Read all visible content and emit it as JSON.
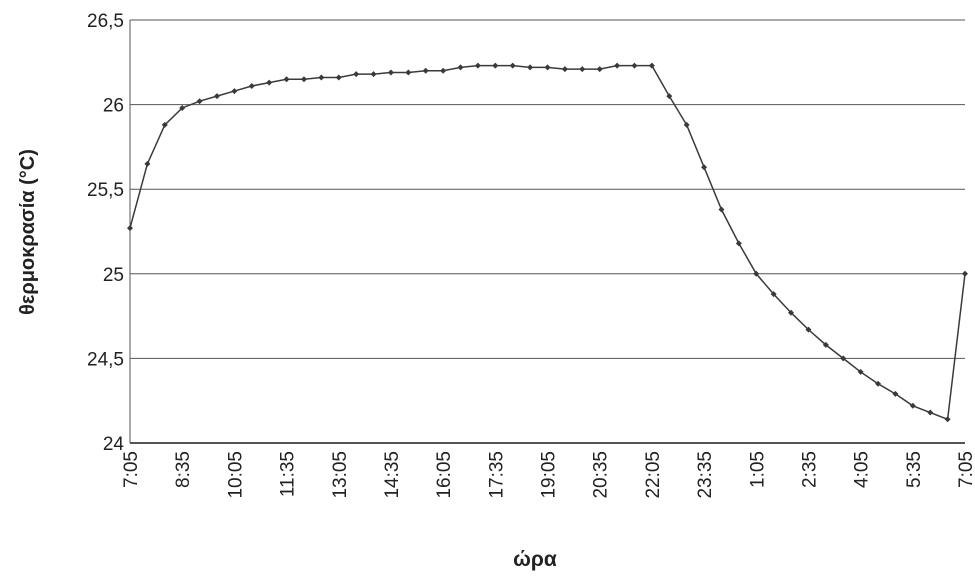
{
  "chart_data": {
    "type": "line",
    "x_label": "ώρα",
    "y_label": "θερμοκρασία (°C)",
    "categories": [
      "7:05",
      null,
      null,
      "8:35",
      null,
      null,
      "10:05",
      null,
      null,
      "11:35",
      null,
      null,
      "13:05",
      null,
      null,
      "14:35",
      null,
      null,
      "16:05",
      null,
      null,
      "17:35",
      null,
      null,
      "19:05",
      null,
      null,
      "20:35",
      null,
      null,
      "22:05",
      null,
      null,
      "23:35",
      null,
      null,
      "1:05",
      null,
      null,
      "2:35",
      null,
      null,
      "4:05",
      null,
      null,
      "5:35",
      null,
      null,
      "7:05"
    ],
    "values": [
      25.27,
      25.65,
      25.88,
      25.98,
      26.02,
      26.05,
      26.08,
      26.11,
      26.13,
      26.15,
      26.15,
      26.16,
      26.16,
      26.18,
      26.18,
      26.19,
      26.19,
      26.2,
      26.2,
      26.22,
      26.23,
      26.23,
      26.23,
      26.22,
      26.22,
      26.21,
      26.21,
      26.21,
      26.23,
      26.23,
      26.23,
      26.05,
      25.88,
      25.63,
      25.38,
      25.18,
      25.0,
      24.88,
      24.77,
      24.67,
      24.58,
      24.5,
      24.42,
      24.35,
      24.29,
      24.22,
      24.18,
      24.14,
      25.0
    ],
    "color": "#3a3a3a",
    "ylim": [
      24,
      26.5
    ],
    "yticks": [
      24,
      {
        "value": 24.5,
        "label": "24,5"
      },
      25,
      {
        "value": 25.5,
        "label": "25,5"
      },
      26,
      {
        "value": 26.5,
        "label": "26,5"
      }
    ],
    "grid": true
  }
}
